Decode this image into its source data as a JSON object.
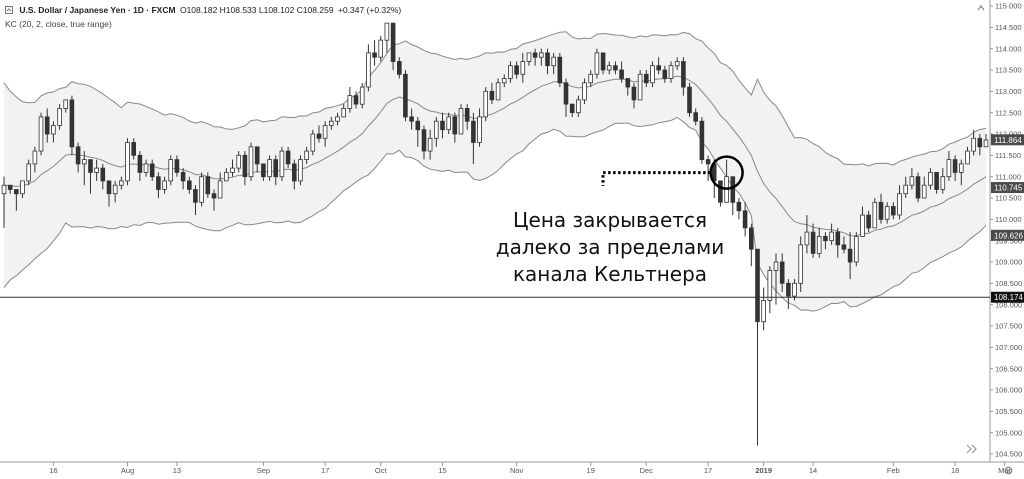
{
  "header": {
    "symbol": "U.S. Dollar / Japanese Yen · 1D · FXCM",
    "ohlc": "O108.182 H108.533 L108.102 C108.259",
    "change": "+0.347 (+0.32%)",
    "indicator": "KC (20, 2, close, true range)"
  },
  "annotation": {
    "line1": "Цена закрывается",
    "line2": "далеко за пределами",
    "line3": "канала Кельтнера"
  },
  "price_tags": [
    {
      "label": "111.864",
      "value": 111.864,
      "color": "#4a4a4a"
    },
    {
      "label": "110.745",
      "value": 110.745,
      "color": "#4a4a4a"
    },
    {
      "label": "109.626",
      "value": 109.626,
      "color": "#4a4a4a"
    },
    {
      "label": "108.174",
      "value": 108.174,
      "color": "#111111"
    }
  ],
  "colors": {
    "up_candle": "#ffffff",
    "down_candle": "#333333",
    "wick": "#333333",
    "band": "#888888",
    "band_fill": "#f2f2f2",
    "annotation_marker": "#000000"
  },
  "icons": {
    "collapse": "up-chevron-icon",
    "scroll": "double-right-arrow-icon",
    "settings": "gear-icon"
  },
  "chart_data": {
    "type": "candlestick",
    "title": "U.S. Dollar / Japanese Yen · 1D · FXCM",
    "ylim": [
      104.5,
      115.0
    ],
    "y_ticks": [
      104.5,
      105.0,
      105.5,
      106.0,
      106.5,
      107.0,
      107.5,
      108.0,
      108.5,
      109.0,
      109.5,
      110.0,
      110.5,
      111.0,
      111.5,
      112.0,
      112.5,
      113.0,
      113.5,
      114.0,
      114.5,
      115.0
    ],
    "y_tick_labels": [
      "104.500",
      "105.000",
      "105.500",
      "106.000",
      "106.500",
      "107.000",
      "107.500",
      "108.000",
      "108.500",
      "109.000",
      "109.500",
      "110.000",
      "110.500",
      "111.000",
      "111.500",
      "112.000",
      "112.500",
      "113.000",
      "113.500",
      "114.000",
      "114.500",
      "115.000"
    ],
    "x_ticks": [
      {
        "label": "16",
        "bar": 8
      },
      {
        "label": "Aug",
        "bar": 20
      },
      {
        "label": "13",
        "bar": 28
      },
      {
        "label": "Sep",
        "bar": 42
      },
      {
        "label": "17",
        "bar": 52
      },
      {
        "label": "Oct",
        "bar": 61
      },
      {
        "label": "15",
        "bar": 71
      },
      {
        "label": "Nov",
        "bar": 83
      },
      {
        "label": "19",
        "bar": 95
      },
      {
        "label": "Dec",
        "bar": 104
      },
      {
        "label": "17",
        "bar": 114
      },
      {
        "label": "2019",
        "bar": 123
      },
      {
        "label": "14",
        "bar": 131
      },
      {
        "label": "Feb",
        "bar": 144
      },
      {
        "label": "18",
        "bar": 154
      },
      {
        "label": "Mar",
        "bar": 162
      }
    ],
    "horizontal_line": 108.174,
    "close": [
      110.8,
      110.7,
      110.6,
      110.9,
      111.3,
      111.6,
      112.4,
      112.0,
      112.2,
      112.6,
      112.8,
      111.7,
      111.3,
      111.4,
      111.1,
      111.2,
      110.9,
      110.6,
      110.8,
      110.9,
      111.8,
      111.5,
      111.1,
      111.3,
      111.0,
      110.7,
      110.9,
      111.4,
      111.1,
      110.9,
      110.7,
      110.4,
      111.0,
      110.6,
      110.5,
      110.9,
      111.1,
      111.2,
      111.5,
      111.0,
      111.7,
      111.3,
      111.0,
      111.4,
      111.0,
      111.6,
      111.3,
      110.9,
      111.4,
      111.6,
      112.0,
      111.9,
      112.2,
      112.3,
      112.4,
      112.6,
      112.9,
      112.7,
      113.1,
      113.9,
      113.8,
      114.2,
      114.6,
      113.7,
      113.4,
      112.4,
      112.3,
      112.1,
      111.6,
      111.9,
      112.3,
      112.1,
      112.4,
      112.0,
      112.6,
      112.3,
      111.8,
      112.4,
      113.0,
      112.8,
      113.2,
      113.3,
      113.6,
      113.4,
      113.7,
      113.9,
      113.8,
      113.9,
      113.6,
      113.8,
      113.2,
      112.7,
      112.5,
      112.8,
      113.2,
      113.4,
      113.9,
      113.5,
      113.6,
      113.5,
      113.3,
      113.1,
      112.8,
      113.4,
      113.2,
      113.6,
      113.5,
      113.3,
      113.6,
      113.7,
      113.1,
      112.5,
      112.3,
      111.4,
      111.3,
      110.9,
      110.4,
      111.0,
      110.4,
      110.2,
      109.8,
      109.3,
      107.6,
      108.1,
      108.8,
      109.0,
      108.5,
      108.2,
      108.5,
      109.4,
      109.7,
      109.2,
      109.6,
      109.5,
      109.7,
      109.4,
      109.3,
      109.0,
      109.6,
      110.1,
      109.8,
      110.4,
      110.0,
      110.3,
      110.1,
      110.6,
      110.8,
      111.0,
      110.5,
      110.8,
      111.1,
      110.7,
      111.0,
      111.4,
      111.1,
      111.3,
      111.6,
      111.9,
      111.7,
      111.86
    ],
    "range": [
      [
        109.8,
        111.0
      ],
      [
        110.6,
        110.8
      ],
      [
        110.2,
        110.7
      ],
      [
        110.5,
        110.9
      ],
      [
        110.8,
        111.4
      ],
      [
        111.1,
        111.7
      ],
      [
        111.5,
        112.5
      ],
      [
        111.8,
        112.6
      ],
      [
        111.8,
        112.3
      ],
      [
        112.1,
        112.7
      ],
      [
        112.5,
        112.8
      ],
      [
        111.5,
        112.9
      ],
      [
        111.1,
        111.8
      ],
      [
        110.8,
        111.6
      ],
      [
        110.6,
        111.4
      ],
      [
        110.9,
        111.4
      ],
      [
        110.7,
        111.3
      ],
      [
        110.3,
        110.9
      ],
      [
        110.4,
        110.9
      ],
      [
        110.7,
        111.0
      ],
      [
        110.8,
        111.9
      ],
      [
        111.4,
        111.9
      ],
      [
        110.9,
        111.6
      ],
      [
        111.0,
        111.4
      ],
      [
        110.9,
        111.4
      ],
      [
        110.5,
        111.1
      ],
      [
        110.6,
        111.0
      ],
      [
        110.8,
        111.5
      ],
      [
        111.0,
        111.5
      ],
      [
        110.7,
        111.2
      ],
      [
        110.6,
        111.0
      ],
      [
        110.1,
        110.8
      ],
      [
        110.3,
        111.1
      ],
      [
        110.5,
        111.1
      ],
      [
        110.2,
        110.7
      ],
      [
        110.5,
        111.1
      ],
      [
        110.9,
        111.2
      ],
      [
        111.0,
        111.4
      ],
      [
        111.1,
        111.6
      ],
      [
        110.8,
        111.6
      ],
      [
        110.9,
        111.8
      ],
      [
        111.1,
        111.7
      ],
      [
        110.9,
        111.3
      ],
      [
        110.9,
        111.5
      ],
      [
        110.8,
        111.5
      ],
      [
        110.9,
        111.7
      ],
      [
        111.2,
        111.7
      ],
      [
        110.7,
        111.4
      ],
      [
        110.8,
        111.5
      ],
      [
        111.3,
        111.7
      ],
      [
        111.5,
        112.1
      ],
      [
        111.8,
        112.2
      ],
      [
        111.7,
        112.3
      ],
      [
        112.1,
        112.4
      ],
      [
        112.2,
        112.5
      ],
      [
        112.4,
        112.7
      ],
      [
        112.5,
        113.1
      ],
      [
        112.6,
        113.0
      ],
      [
        112.6,
        113.2
      ],
      [
        113.0,
        114.1
      ],
      [
        113.6,
        114.2
      ],
      [
        113.7,
        114.3
      ],
      [
        113.9,
        114.6
      ],
      [
        113.5,
        114.6
      ],
      [
        113.3,
        113.8
      ],
      [
        112.3,
        113.5
      ],
      [
        112.1,
        112.6
      ],
      [
        111.7,
        112.4
      ],
      [
        111.4,
        112.2
      ],
      [
        111.4,
        112.1
      ],
      [
        111.7,
        112.4
      ],
      [
        111.9,
        112.5
      ],
      [
        112.0,
        112.5
      ],
      [
        111.8,
        112.5
      ],
      [
        112.0,
        112.7
      ],
      [
        112.1,
        112.7
      ],
      [
        111.3,
        112.5
      ],
      [
        111.7,
        112.6
      ],
      [
        112.3,
        113.1
      ],
      [
        112.7,
        113.2
      ],
      [
        112.8,
        113.3
      ],
      [
        113.1,
        113.4
      ],
      [
        113.2,
        113.7
      ],
      [
        113.3,
        113.7
      ],
      [
        113.2,
        113.9
      ],
      [
        113.6,
        113.9
      ],
      [
        113.6,
        114.0
      ],
      [
        113.6,
        114.0
      ],
      [
        113.4,
        114.0
      ],
      [
        113.4,
        113.9
      ],
      [
        113.1,
        113.9
      ],
      [
        112.4,
        113.3
      ],
      [
        112.4,
        112.7
      ],
      [
        112.4,
        112.9
      ],
      [
        112.7,
        113.3
      ],
      [
        113.1,
        113.5
      ],
      [
        113.3,
        114.0
      ],
      [
        113.4,
        113.9
      ],
      [
        113.4,
        113.7
      ],
      [
        113.4,
        113.7
      ],
      [
        113.2,
        113.7
      ],
      [
        112.9,
        113.3
      ],
      [
        112.6,
        113.2
      ],
      [
        112.8,
        113.5
      ],
      [
        113.1,
        113.5
      ],
      [
        113.1,
        113.7
      ],
      [
        113.4,
        113.8
      ],
      [
        113.2,
        113.6
      ],
      [
        113.2,
        113.7
      ],
      [
        113.5,
        113.8
      ],
      [
        112.9,
        113.8
      ],
      [
        112.4,
        113.2
      ],
      [
        112.2,
        112.6
      ],
      [
        111.3,
        112.4
      ],
      [
        110.9,
        111.5
      ],
      [
        110.5,
        111.4
      ],
      [
        110.3,
        110.9
      ],
      [
        110.4,
        111.4
      ],
      [
        110.1,
        110.8
      ],
      [
        110.0,
        110.5
      ],
      [
        109.6,
        110.4
      ],
      [
        108.9,
        109.9
      ],
      [
        104.7,
        109.0
      ],
      [
        107.4,
        108.4
      ],
      [
        107.8,
        108.9
      ],
      [
        108.0,
        109.2
      ],
      [
        108.3,
        109.2
      ],
      [
        107.9,
        108.6
      ],
      [
        108.1,
        108.6
      ],
      [
        108.3,
        109.6
      ],
      [
        109.2,
        110.1
      ],
      [
        109.1,
        109.9
      ],
      [
        109.1,
        109.8
      ],
      [
        109.3,
        109.7
      ],
      [
        109.4,
        109.9
      ],
      [
        109.1,
        109.8
      ],
      [
        109.2,
        109.6
      ],
      [
        108.6,
        109.7
      ],
      [
        108.9,
        109.7
      ],
      [
        109.6,
        110.3
      ],
      [
        109.7,
        110.2
      ],
      [
        109.8,
        110.5
      ],
      [
        109.9,
        110.6
      ],
      [
        109.9,
        110.4
      ],
      [
        110.0,
        110.4
      ],
      [
        110.0,
        110.8
      ],
      [
        110.5,
        111.0
      ],
      [
        110.7,
        111.2
      ],
      [
        110.4,
        111.1
      ],
      [
        110.5,
        111.0
      ],
      [
        110.7,
        111.2
      ],
      [
        110.6,
        111.1
      ],
      [
        110.6,
        111.2
      ],
      [
        110.9,
        111.6
      ],
      [
        110.9,
        111.5
      ],
      [
        110.8,
        111.4
      ],
      [
        111.3,
        111.7
      ],
      [
        111.5,
        112.1
      ],
      [
        111.5,
        112.0
      ],
      [
        111.7,
        112.0
      ]
    ]
  }
}
